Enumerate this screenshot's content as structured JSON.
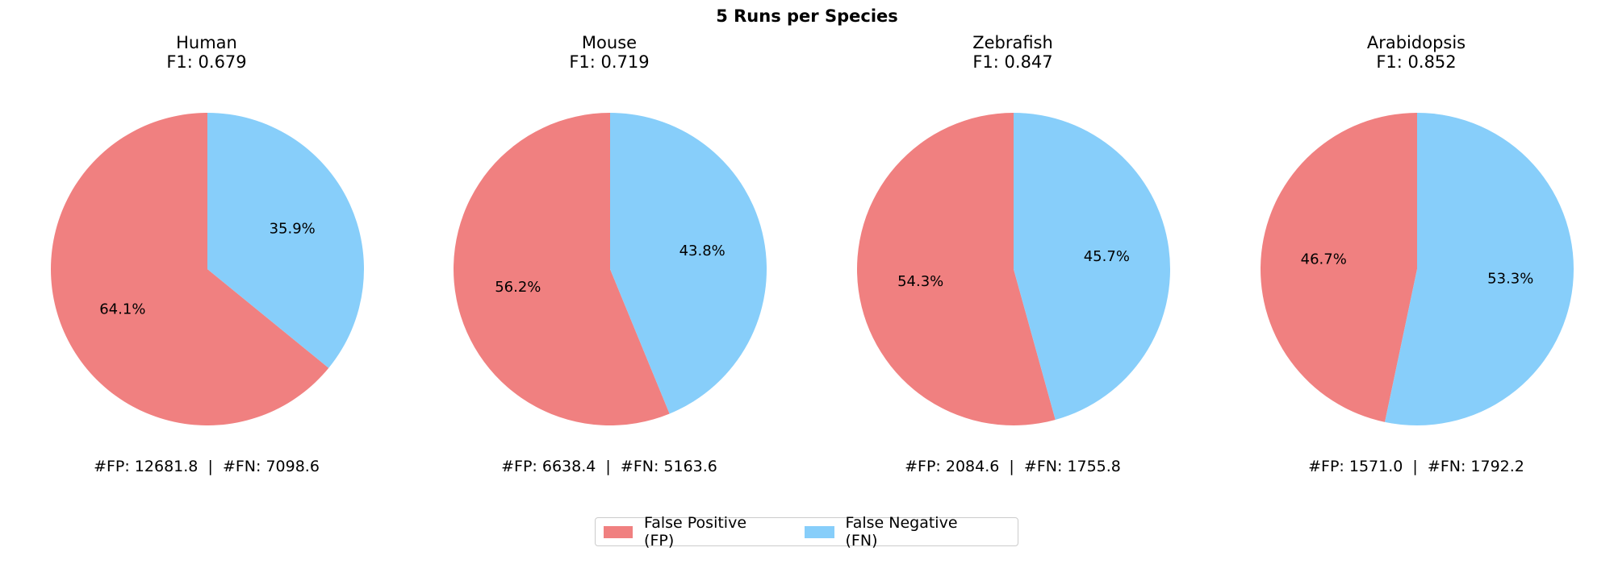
{
  "chart_data": {
    "type": "pie",
    "title": "5 Runs per Species",
    "legend": {
      "placement": "bottom-center",
      "entries": [
        {
          "label": "False Positive (FP)",
          "color": "#F08080"
        },
        {
          "label": "False Negative (FN)",
          "color": "#87CEFA"
        }
      ]
    },
    "charts": [
      {
        "species": "Human",
        "f1": "F1: 0.679",
        "fp": 12681.8,
        "fn": 7098.6,
        "counts": "#FP: 12681.8  |  #FN: 7098.6",
        "slices": [
          {
            "label": "False Positive (FP)",
            "value": 64.1,
            "pct_label": "64.1%"
          },
          {
            "label": "False Negative (FN)",
            "value": 35.9,
            "pct_label": "35.9%"
          }
        ]
      },
      {
        "species": "Mouse",
        "f1": "F1: 0.719",
        "fp": 6638.4,
        "fn": 5163.6,
        "counts": "#FP: 6638.4  |  #FN: 5163.6",
        "slices": [
          {
            "label": "False Positive (FP)",
            "value": 56.2,
            "pct_label": "56.2%"
          },
          {
            "label": "False Negative (FN)",
            "value": 43.8,
            "pct_label": "43.8%"
          }
        ]
      },
      {
        "species": "Zebrafish",
        "f1": "F1: 0.847",
        "fp": 2084.6,
        "fn": 1755.8,
        "counts": "#FP: 2084.6  |  #FN: 1755.8",
        "slices": [
          {
            "label": "False Positive (FP)",
            "value": 54.3,
            "pct_label": "54.3%"
          },
          {
            "label": "False Negative (FN)",
            "value": 45.7,
            "pct_label": "45.7%"
          }
        ]
      },
      {
        "species": "Arabidopsis",
        "f1": "F1: 0.852",
        "fp": 1571.0,
        "fn": 1792.2,
        "counts": "#FP: 1571.0  |  #FN: 1792.2",
        "slices": [
          {
            "label": "False Positive (FP)",
            "value": 46.7,
            "pct_label": "46.7%"
          },
          {
            "label": "False Negative (FN)",
            "value": 53.3,
            "pct_label": "53.3%"
          }
        ]
      }
    ]
  }
}
